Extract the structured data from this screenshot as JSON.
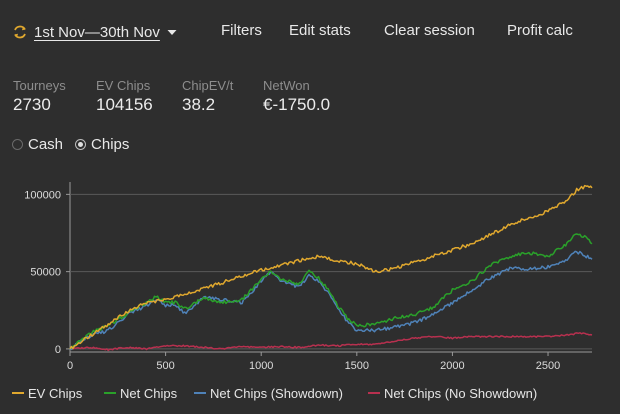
{
  "toolbar": {
    "date_range": "1st Nov—30th Nov",
    "filters": "Filters",
    "edit_stats": "Edit stats",
    "clear_session": "Clear session",
    "profit_calc": "Profit calc"
  },
  "stats": [
    {
      "label": "Tourneys",
      "value": "2730"
    },
    {
      "label": "EV Chips",
      "value": "104156"
    },
    {
      "label": "ChipEV/t",
      "value": "38.2"
    },
    {
      "label": "NetWon",
      "value": "€-1750.0"
    }
  ],
  "mode": {
    "options": [
      {
        "label": "Cash",
        "selected": false
      },
      {
        "label": "Chips",
        "selected": true
      }
    ]
  },
  "chart_data": {
    "type": "line",
    "xlim": [
      0,
      2730
    ],
    "ylim": [
      -2000,
      108000
    ],
    "x_ticks": [
      0,
      500,
      1000,
      1500,
      2000,
      2500
    ],
    "y_ticks": [
      0,
      50000,
      100000
    ],
    "grid": true,
    "legend_position": "bottom",
    "series": [
      {
        "name": "EV Chips",
        "color": "#e0a82e",
        "points": [
          [
            0,
            0
          ],
          [
            100,
            8000
          ],
          [
            200,
            16000
          ],
          [
            300,
            24000
          ],
          [
            400,
            30000
          ],
          [
            500,
            32000
          ],
          [
            600,
            35000
          ],
          [
            700,
            39000
          ],
          [
            800,
            43000
          ],
          [
            900,
            47000
          ],
          [
            1000,
            51000
          ],
          [
            1100,
            54000
          ],
          [
            1200,
            57000
          ],
          [
            1300,
            60000
          ],
          [
            1400,
            57000
          ],
          [
            1500,
            55000
          ],
          [
            1600,
            50000
          ],
          [
            1700,
            52000
          ],
          [
            1800,
            56000
          ],
          [
            1900,
            60000
          ],
          [
            2000,
            64000
          ],
          [
            2100,
            68000
          ],
          [
            2200,
            74000
          ],
          [
            2300,
            80000
          ],
          [
            2400,
            85000
          ],
          [
            2500,
            89000
          ],
          [
            2600,
            96000
          ],
          [
            2650,
            103000
          ],
          [
            2700,
            105000
          ],
          [
            2730,
            104156
          ]
        ]
      },
      {
        "name": "Net Chips",
        "color": "#2aa12a",
        "points": [
          [
            0,
            0
          ],
          [
            100,
            10000
          ],
          [
            200,
            15000
          ],
          [
            300,
            23000
          ],
          [
            400,
            30000
          ],
          [
            450,
            34000
          ],
          [
            500,
            30000
          ],
          [
            550,
            30000
          ],
          [
            600,
            26000
          ],
          [
            700,
            33000
          ],
          [
            800,
            30000
          ],
          [
            900,
            32000
          ],
          [
            1000,
            45000
          ],
          [
            1050,
            50000
          ],
          [
            1100,
            45000
          ],
          [
            1200,
            42000
          ],
          [
            1250,
            50000
          ],
          [
            1300,
            46000
          ],
          [
            1350,
            38000
          ],
          [
            1400,
            28000
          ],
          [
            1450,
            20000
          ],
          [
            1500,
            15000
          ],
          [
            1600,
            16000
          ],
          [
            1700,
            20000
          ],
          [
            1800,
            22000
          ],
          [
            1900,
            27000
          ],
          [
            2000,
            38000
          ],
          [
            2100,
            44000
          ],
          [
            2200,
            54000
          ],
          [
            2300,
            60000
          ],
          [
            2400,
            62000
          ],
          [
            2500,
            60000
          ],
          [
            2600,
            68000
          ],
          [
            2650,
            75000
          ],
          [
            2700,
            72000
          ],
          [
            2730,
            68000
          ]
        ]
      },
      {
        "name": "Net Chips (Showdown)",
        "color": "#4f82b8",
        "points": [
          [
            0,
            0
          ],
          [
            100,
            8000
          ],
          [
            200,
            12000
          ],
          [
            300,
            22000
          ],
          [
            400,
            28000
          ],
          [
            450,
            32000
          ],
          [
            500,
            28000
          ],
          [
            550,
            29000
          ],
          [
            600,
            23000
          ],
          [
            700,
            33000
          ],
          [
            800,
            32000
          ],
          [
            900,
            30000
          ],
          [
            1000,
            44000
          ],
          [
            1050,
            50000
          ],
          [
            1100,
            44000
          ],
          [
            1200,
            40000
          ],
          [
            1250,
            48000
          ],
          [
            1300,
            44000
          ],
          [
            1350,
            36000
          ],
          [
            1400,
            26000
          ],
          [
            1450,
            18000
          ],
          [
            1500,
            12000
          ],
          [
            1600,
            12000
          ],
          [
            1700,
            14000
          ],
          [
            1800,
            17000
          ],
          [
            1900,
            22000
          ],
          [
            2000,
            30000
          ],
          [
            2100,
            38000
          ],
          [
            2200,
            46000
          ],
          [
            2300,
            52000
          ],
          [
            2400,
            52000
          ],
          [
            2500,
            53000
          ],
          [
            2600,
            58000
          ],
          [
            2650,
            63000
          ],
          [
            2700,
            60000
          ],
          [
            2730,
            58000
          ]
        ]
      },
      {
        "name": "Net Chips (No Showdown)",
        "color": "#b8304f",
        "points": [
          [
            0,
            0
          ],
          [
            100,
            1000
          ],
          [
            200,
            -500
          ],
          [
            300,
            1000
          ],
          [
            400,
            0
          ],
          [
            500,
            2000
          ],
          [
            600,
            2000
          ],
          [
            700,
            1000
          ],
          [
            800,
            0
          ],
          [
            900,
            1500
          ],
          [
            1000,
            1000
          ],
          [
            1100,
            1500
          ],
          [
            1200,
            1000
          ],
          [
            1300,
            2500
          ],
          [
            1400,
            2000
          ],
          [
            1500,
            3000
          ],
          [
            1600,
            3000
          ],
          [
            1700,
            5000
          ],
          [
            1800,
            7000
          ],
          [
            1900,
            8000
          ],
          [
            2000,
            7000
          ],
          [
            2100,
            8000
          ],
          [
            2200,
            8000
          ],
          [
            2300,
            8000
          ],
          [
            2400,
            8000
          ],
          [
            2500,
            8000
          ],
          [
            2600,
            9000
          ],
          [
            2650,
            10000
          ],
          [
            2700,
            10000
          ],
          [
            2730,
            9000
          ]
        ]
      }
    ]
  }
}
